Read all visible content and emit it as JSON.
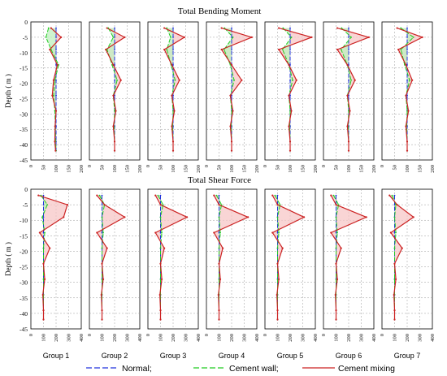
{
  "figure": {
    "legend": [
      {
        "label": "Normal;",
        "color": "#2233dd",
        "dash": "7 3"
      },
      {
        "label": "Cement wall;",
        "color": "#22cc22",
        "dash": "7 3"
      },
      {
        "label": "Cement mixing",
        "color": "#cc2222",
        "dash": ""
      }
    ],
    "fill_colors": {
      "green": "#bff0bf",
      "red": "#f7c7c7"
    }
  },
  "chart_data": [
    {
      "type": "line",
      "title": "Total Bending Moment",
      "ylabel": "Depth ( m )",
      "ylim": [
        -45,
        0
      ],
      "yticks": [
        0,
        -5,
        -10,
        -15,
        -20,
        -25,
        -30,
        -35,
        -40,
        -45
      ],
      "xlim": [
        0,
        200
      ],
      "xticks": [
        0,
        50,
        100,
        150,
        200
      ],
      "grid": true,
      "depth": [
        -2,
        -5,
        -9,
        -14,
        -19,
        -24,
        -29,
        -34,
        -39,
        -42
      ],
      "groups": [
        {
          "group": "Group 1",
          "normal": [
            100,
            100,
            100,
            100,
            100,
            100,
            100,
            100,
            100,
            100
          ],
          "cement_wall": [
            70,
            60,
            80,
            110,
            95,
            90,
            95,
            97,
            98,
            100
          ],
          "cement_mixing": [
            80,
            120,
            75,
            105,
            90,
            85,
            100,
            96,
            95,
            98
          ]
        },
        {
          "group": "Group 2",
          "normal": [
            100,
            100,
            100,
            100,
            100,
            100,
            100,
            100,
            100,
            100
          ],
          "cement_wall": [
            75,
            95,
            70,
            90,
            110,
            95,
            100,
            98,
            100,
            100
          ],
          "cement_mixing": [
            70,
            140,
            65,
            95,
            125,
            95,
            105,
            95,
            100,
            100
          ]
        },
        {
          "group": "Group 3",
          "normal": [
            100,
            100,
            100,
            100,
            100,
            100,
            100,
            100,
            100,
            100
          ],
          "cement_wall": [
            75,
            90,
            75,
            92,
            108,
            95,
            100,
            98,
            100,
            100
          ],
          "cement_mixing": [
            65,
            145,
            65,
            95,
            125,
            95,
            105,
            95,
            100,
            100
          ]
        },
        {
          "group": "Group 4",
          "normal": [
            100,
            100,
            100,
            100,
            100,
            100,
            100,
            100,
            100,
            100
          ],
          "cement_wall": [
            72,
            105,
            70,
            95,
            110,
            95,
            100,
            98,
            100,
            100
          ],
          "cement_mixing": [
            60,
            180,
            60,
            100,
            140,
            95,
            105,
            95,
            100,
            100
          ]
        },
        {
          "group": "Group 5",
          "normal": [
            100,
            100,
            100,
            100,
            100,
            100,
            100,
            100,
            100,
            100
          ],
          "cement_wall": [
            72,
            105,
            70,
            95,
            110,
            95,
            100,
            98,
            100,
            100
          ],
          "cement_mixing": [
            55,
            185,
            55,
            95,
            125,
            95,
            105,
            95,
            100,
            100
          ]
        },
        {
          "group": "Group 6",
          "normal": [
            100,
            100,
            100,
            100,
            100,
            100,
            100,
            100,
            100,
            100
          ],
          "cement_wall": [
            72,
            110,
            70,
            95,
            110,
            95,
            100,
            98,
            100,
            100
          ],
          "cement_mixing": [
            55,
            180,
            55,
            95,
            125,
            95,
            105,
            95,
            100,
            100
          ]
        },
        {
          "group": "Group 7",
          "normal": [
            100,
            100,
            100,
            100,
            100,
            100,
            100,
            100,
            100,
            100
          ],
          "cement_wall": [
            75,
            125,
            75,
            90,
            110,
            95,
            100,
            98,
            100,
            100
          ],
          "cement_mixing": [
            60,
            160,
            65,
            95,
            120,
            95,
            105,
            95,
            100,
            100
          ]
        }
      ]
    },
    {
      "type": "line",
      "title": "Total Shear Force",
      "ylabel": "Depth ( m )",
      "ylim": [
        -45,
        0
      ],
      "yticks": [
        0,
        -5,
        -10,
        -15,
        -20,
        -25,
        -30,
        -35,
        -40,
        -45
      ],
      "xlim": [
        0,
        400
      ],
      "xticks": [
        0,
        100,
        200,
        300,
        400
      ],
      "grid": true,
      "depth": [
        -2,
        -5,
        -9,
        -14,
        -19,
        -24,
        -29,
        -34,
        -39,
        -42
      ],
      "groups": [
        {
          "group": "Group 1",
          "normal": [
            100,
            100,
            100,
            100,
            100,
            100,
            100,
            100,
            100,
            100
          ],
          "cement_wall": [
            80,
            130,
            90,
            110,
            100,
            100,
            100,
            100,
            100,
            100
          ],
          "cement_mixing": [
            60,
            290,
            260,
            70,
            150,
            100,
            110,
            95,
            100,
            100
          ]
        },
        {
          "group": "Group 2",
          "normal": [
            100,
            100,
            100,
            100,
            100,
            100,
            100,
            100,
            100,
            100
          ],
          "cement_wall": [
            80,
            120,
            100,
            110,
            100,
            100,
            100,
            100,
            100,
            100
          ],
          "cement_mixing": [
            60,
            120,
            280,
            60,
            140,
            100,
            110,
            95,
            100,
            100
          ]
        },
        {
          "group": "Group 3",
          "normal": [
            100,
            100,
            100,
            100,
            100,
            100,
            100,
            100,
            100,
            100
          ],
          "cement_wall": [
            80,
            120,
            100,
            110,
            100,
            100,
            100,
            100,
            100,
            100
          ],
          "cement_mixing": [
            60,
            100,
            310,
            60,
            130,
            100,
            110,
            95,
            100,
            100
          ]
        },
        {
          "group": "Group 4",
          "normal": [
            100,
            100,
            100,
            100,
            100,
            100,
            100,
            100,
            100,
            100
          ],
          "cement_wall": [
            80,
            120,
            100,
            110,
            100,
            100,
            100,
            100,
            100,
            100
          ],
          "cement_mixing": [
            60,
            100,
            330,
            60,
            130,
            100,
            110,
            95,
            100,
            100
          ]
        },
        {
          "group": "Group 5",
          "normal": [
            100,
            100,
            100,
            100,
            100,
            100,
            100,
            100,
            100,
            100
          ],
          "cement_wall": [
            80,
            120,
            100,
            110,
            100,
            100,
            100,
            100,
            100,
            100
          ],
          "cement_mixing": [
            60,
            100,
            310,
            60,
            140,
            100,
            110,
            95,
            100,
            100
          ]
        },
        {
          "group": "Group 6",
          "normal": [
            100,
            100,
            100,
            100,
            100,
            100,
            100,
            100,
            100,
            100
          ],
          "cement_wall": [
            80,
            120,
            100,
            110,
            100,
            100,
            100,
            100,
            100,
            100
          ],
          "cement_mixing": [
            60,
            100,
            340,
            60,
            140,
            100,
            110,
            95,
            100,
            100
          ]
        },
        {
          "group": "Group 7",
          "normal": [
            100,
            100,
            100,
            100,
            100,
            100,
            100,
            100,
            100,
            100
          ],
          "cement_wall": [
            80,
            110,
            100,
            110,
            100,
            100,
            100,
            100,
            100,
            100
          ],
          "cement_mixing": [
            60,
            120,
            250,
            70,
            160,
            100,
            110,
            95,
            100,
            100
          ]
        }
      ]
    }
  ]
}
